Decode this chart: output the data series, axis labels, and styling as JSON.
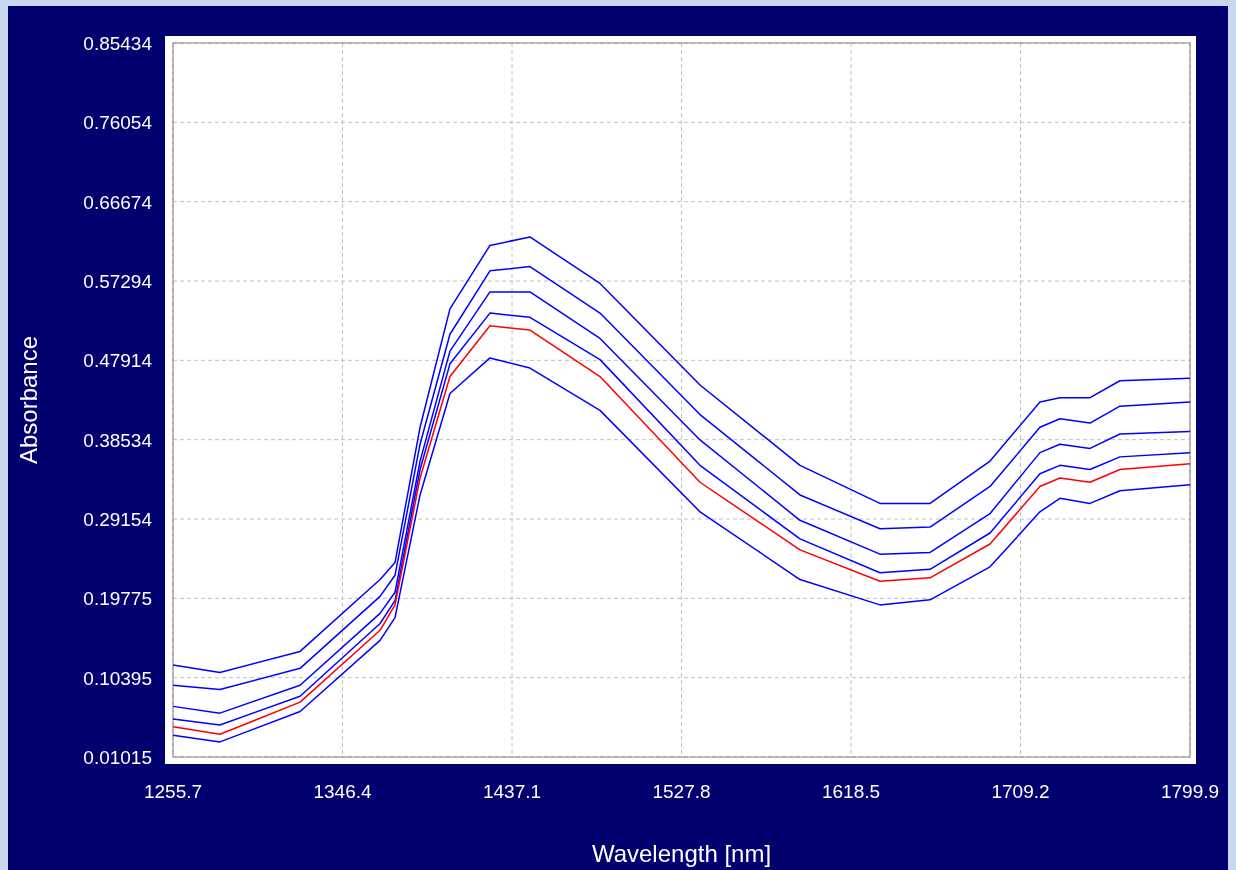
{
  "chart_data": {
    "type": "line",
    "xlabel": "Wavelength [nm]",
    "ylabel": "Absorbance",
    "x": [
      1255.7,
      1280.8,
      1323.7,
      1366.5,
      1374.5,
      1387.9,
      1403.9,
      1425.3,
      1446.7,
      1484.2,
      1537.7,
      1591.2,
      1634.0,
      1660.8,
      1692.9,
      1719.6,
      1730.3,
      1746.4,
      1762.4,
      1799.9
    ],
    "series": [
      {
        "color": "#0000ff",
        "values": [
          0.119,
          0.11,
          0.135,
          0.22,
          0.24,
          0.4,
          0.54,
          0.615,
          0.625,
          0.57,
          0.45,
          0.355,
          0.31,
          0.31,
          0.36,
          0.43,
          0.435,
          0.435,
          0.455,
          0.458
        ]
      },
      {
        "color": "#0000ff",
        "values": [
          0.095,
          0.09,
          0.115,
          0.2,
          0.225,
          0.38,
          0.51,
          0.585,
          0.59,
          0.535,
          0.415,
          0.32,
          0.28,
          0.282,
          0.33,
          0.4,
          0.41,
          0.405,
          0.425,
          0.43
        ]
      },
      {
        "color": "#0000ff",
        "values": [
          0.07,
          0.062,
          0.095,
          0.18,
          0.205,
          0.36,
          0.49,
          0.56,
          0.56,
          0.505,
          0.385,
          0.29,
          0.25,
          0.252,
          0.298,
          0.37,
          0.38,
          0.375,
          0.392,
          0.395
        ]
      },
      {
        "color": "#0000ff",
        "values": [
          0.055,
          0.048,
          0.082,
          0.168,
          0.195,
          0.35,
          0.475,
          0.535,
          0.53,
          0.48,
          0.355,
          0.268,
          0.228,
          0.232,
          0.275,
          0.345,
          0.355,
          0.35,
          0.365,
          0.37
        ]
      },
      {
        "color": "#0000ff",
        "values": [
          0.036,
          0.028,
          0.064,
          0.148,
          0.175,
          0.32,
          0.44,
          0.482,
          0.47,
          0.42,
          0.3,
          0.22,
          0.19,
          0.196,
          0.235,
          0.3,
          0.316,
          0.31,
          0.325,
          0.332
        ]
      },
      {
        "color": "#ff0000",
        "values": [
          0.046,
          0.037,
          0.075,
          0.16,
          0.19,
          0.34,
          0.46,
          0.52,
          0.515,
          0.46,
          0.335,
          0.255,
          0.218,
          0.222,
          0.262,
          0.33,
          0.34,
          0.335,
          0.35,
          0.357
        ]
      }
    ],
    "xlim": [
      1255.7,
      1799.9
    ],
    "xticks": [
      1255.7,
      1346.4,
      1437.1,
      1527.8,
      1618.5,
      1709.2,
      1799.9
    ],
    "ylim": [
      0.01015,
      0.85434
    ],
    "yticks": [
      0.01015,
      0.10395,
      0.19775,
      0.29154,
      0.38534,
      0.47914,
      0.57294,
      0.66674,
      0.76054,
      0.85434
    ],
    "grid": true,
    "marker": "none",
    "line_style": "solid"
  }
}
